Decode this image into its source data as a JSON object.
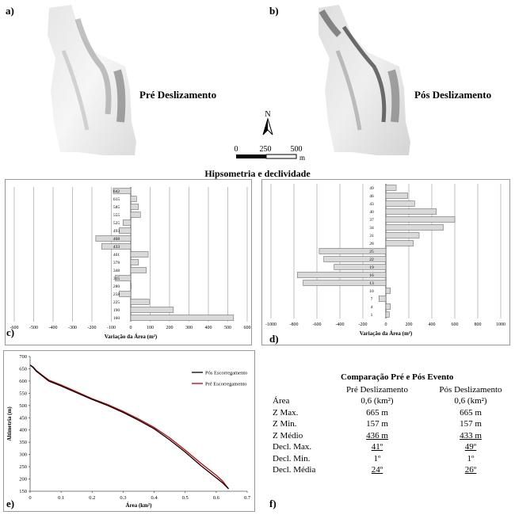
{
  "panels": {
    "a": "a)",
    "b": "b)",
    "c": "c)",
    "d": "d)",
    "e": "e)",
    "f": "f)"
  },
  "maps": {
    "pre_title": "Pré Deslizamento",
    "post_title": "Pós Deslizamento",
    "north": "N",
    "scale_labels": [
      "0",
      "250",
      "500"
    ],
    "scale_unit": "m"
  },
  "section_title": "Hipsometria e declividade",
  "chart_data": [
    {
      "id": "c",
      "type": "bar",
      "orientation": "horizontal",
      "xlabel": "Variação da Área (m²)",
      "ylabel": "",
      "xlim": [
        -600,
        600
      ],
      "xticks": [
        "-600",
        "-500",
        "-400",
        "-300",
        "-200",
        "-100",
        "0",
        "100",
        "200",
        "300",
        "400",
        "500",
        "600"
      ],
      "categories": [
        "160",
        "190",
        "225",
        "258",
        "280",
        "315",
        "348",
        "378",
        "401",
        "433",
        "468",
        "493",
        "525",
        "555",
        "585",
        "615",
        "642"
      ],
      "values": [
        530,
        220,
        95,
        -60,
        0,
        -80,
        80,
        40,
        90,
        -150,
        -180,
        -60,
        -40,
        50,
        40,
        30,
        -90
      ]
    },
    {
      "id": "d",
      "type": "bar",
      "orientation": "horizontal",
      "xlabel": "Variação da Área (m²)",
      "ylabel": "",
      "xlim": [
        -1000,
        1000
      ],
      "xticks": [
        "-1000",
        "-800",
        "-600",
        "-400",
        "-200",
        "0",
        "200",
        "400",
        "600",
        "800",
        "1000"
      ],
      "categories": [
        "1",
        "4",
        "7",
        "10",
        "13",
        "16",
        "19",
        "22",
        "25",
        "28",
        "31",
        "34",
        "37",
        "40",
        "43",
        "46",
        "49"
      ],
      "values": [
        30,
        40,
        -60,
        40,
        -720,
        -770,
        -450,
        -540,
        -580,
        240,
        290,
        500,
        600,
        440,
        250,
        190,
        90
      ]
    },
    {
      "id": "e",
      "type": "line",
      "xlabel": "Área (km²)",
      "ylabel": "Altimetria (m)",
      "xlim": [
        0,
        0.7
      ],
      "ylim": [
        150,
        700
      ],
      "xticks": [
        "0",
        "0.1",
        "0.2",
        "0.3",
        "0.4",
        "0.5",
        "0.6",
        "0.7"
      ],
      "yticks": [
        "150",
        "200",
        "250",
        "300",
        "350",
        "400",
        "450",
        "500",
        "550",
        "600",
        "650",
        "700"
      ],
      "legend_position": "top-right",
      "series": [
        {
          "name": "Pós Escorregamento",
          "color": "#000000",
          "x": [
            0,
            0.01,
            0.02,
            0.04,
            0.06,
            0.1,
            0.15,
            0.2,
            0.25,
            0.3,
            0.35,
            0.4,
            0.45,
            0.5,
            0.55,
            0.6,
            0.62,
            0.64
          ],
          "y": [
            665,
            655,
            640,
            620,
            600,
            580,
            552,
            525,
            500,
            472,
            440,
            405,
            360,
            310,
            255,
            205,
            185,
            160
          ]
        },
        {
          "name": "Pré Escorregamento",
          "color": "#cc0000",
          "x": [
            0,
            0.01,
            0.02,
            0.04,
            0.06,
            0.1,
            0.15,
            0.2,
            0.25,
            0.3,
            0.35,
            0.4,
            0.45,
            0.5,
            0.55,
            0.6,
            0.62,
            0.64
          ],
          "y": [
            665,
            657,
            643,
            623,
            604,
            584,
            556,
            528,
            504,
            476,
            445,
            410,
            368,
            318,
            265,
            215,
            192,
            160
          ]
        }
      ]
    }
  ],
  "comparison": {
    "title": "Comparação  Pré e Pós Evento",
    "col_pre": "Pré Deslizamento",
    "col_post": "Pós Deslizamento",
    "rows": [
      {
        "label": "Área",
        "pre": "0,6 (km²)",
        "post": "0,6 (km²)",
        "underline": false
      },
      {
        "label": "Z Max.",
        "pre": "665 m",
        "post": "665 m",
        "underline": false
      },
      {
        "label": "Z Min.",
        "pre": "157 m",
        "post": "157 m",
        "underline": false
      },
      {
        "label": "Z Médio",
        "pre": "436 m",
        "post": "433 m",
        "underline": true
      },
      {
        "label": "Decl. Max.",
        "pre": "41º",
        "post": "49º",
        "underline": true
      },
      {
        "label": "Decl. Min.",
        "pre": "1º",
        "post": "1º",
        "underline": false
      },
      {
        "label": "Decl. Média",
        "pre": "24º",
        "post": "26º",
        "underline": true
      }
    ]
  }
}
